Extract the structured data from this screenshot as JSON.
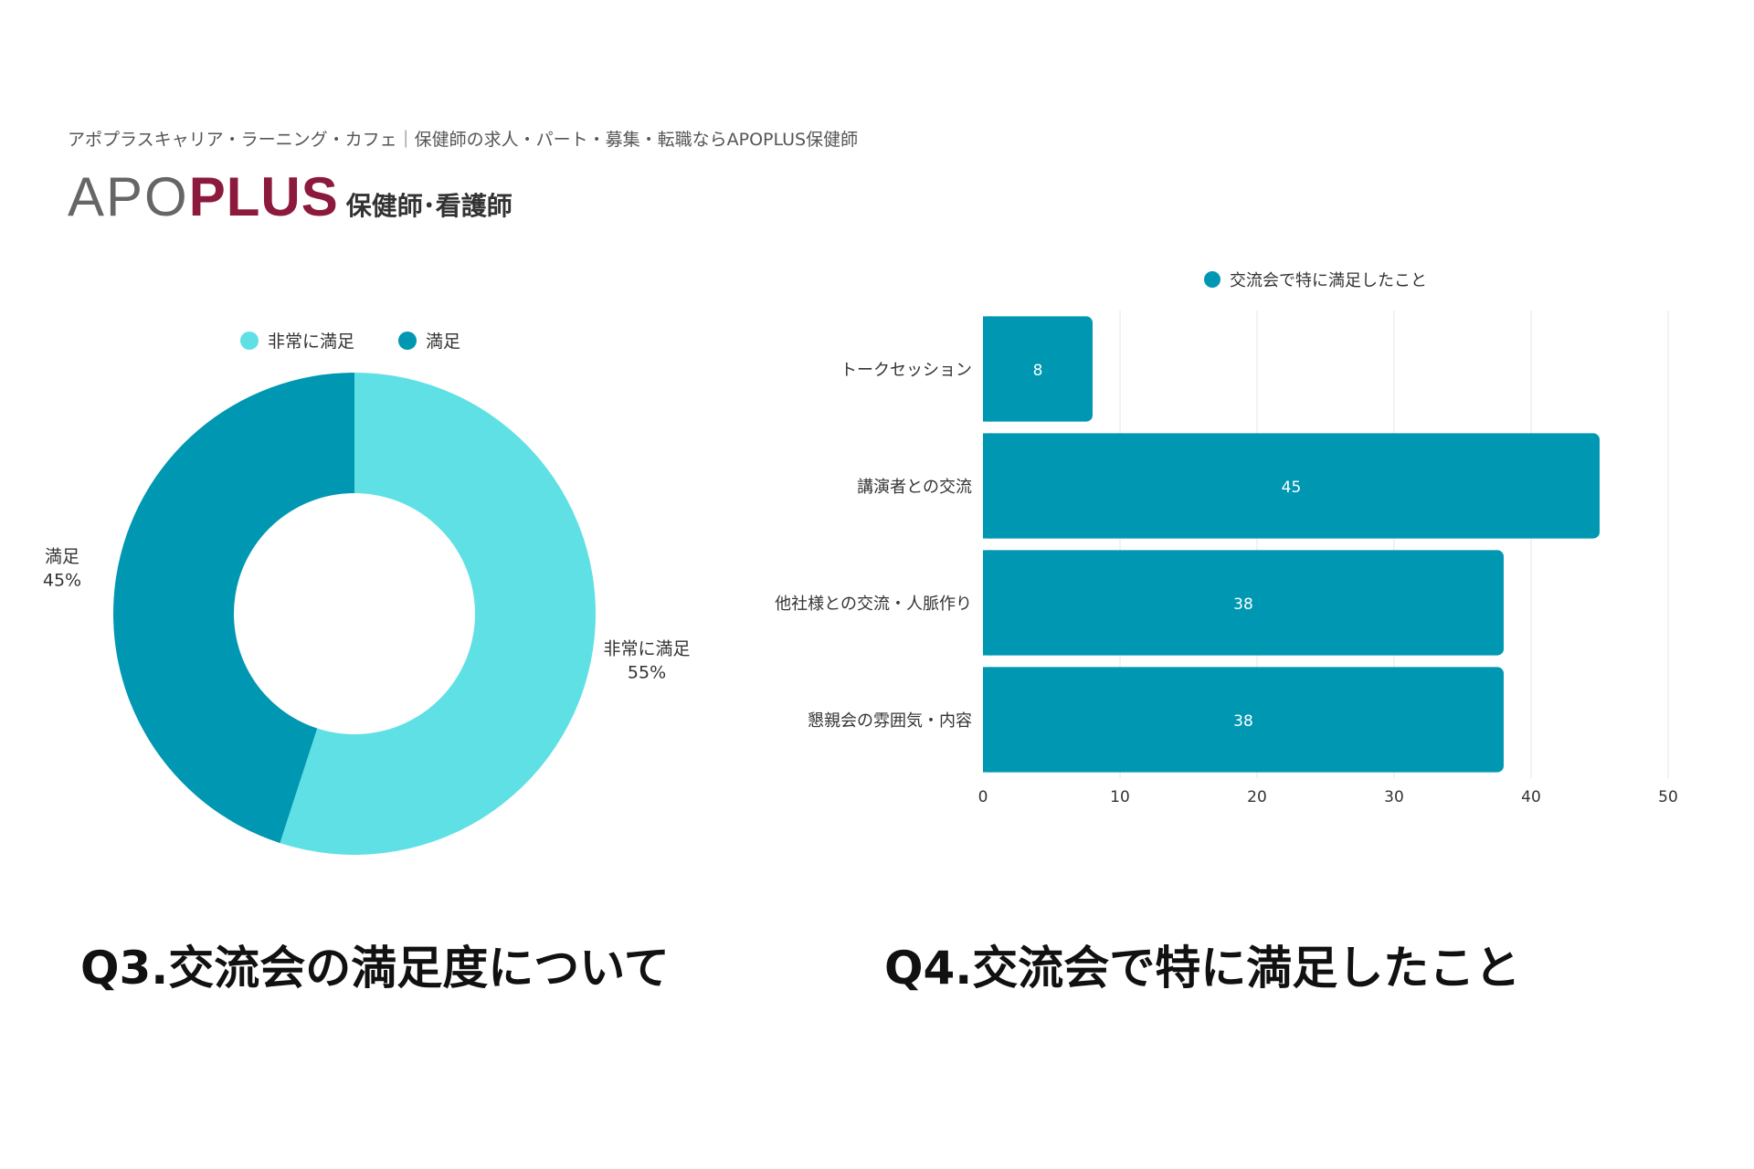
{
  "header": {
    "site_title": "アポプラスキャリア・ラーニング・カフェ｜保健師の求人・パート・募集・転職ならAPOPLUS保健師",
    "logo_apo": "APO",
    "logo_plus": "PLUS",
    "logo_sub": "保健師･看護師"
  },
  "colors": {
    "light": "#5fe0e5",
    "dark": "#0097b2"
  },
  "chart_data": [
    {
      "type": "pie",
      "title": "Q3.交流会の満足度について",
      "legend_position": "top",
      "categories": [
        "非常に満足",
        "満足"
      ],
      "values": [
        55,
        45
      ],
      "labels": [
        "55%",
        "45%"
      ]
    },
    {
      "type": "bar",
      "orientation": "horizontal",
      "title": "Q4.交流会で特に満足したこと",
      "legend_position": "top",
      "categories": [
        "トークセッション",
        "講演者との交流",
        "他社様との交流・人脈作り",
        "懇親会の雰囲気・内容"
      ],
      "series": [
        {
          "name": "交流会で特に満足したこと",
          "values": [
            8,
            45,
            38,
            38
          ]
        }
      ],
      "xlim": [
        0,
        50
      ],
      "xticks": [
        0,
        10,
        20,
        30,
        40,
        50
      ],
      "grid": true
    }
  ]
}
